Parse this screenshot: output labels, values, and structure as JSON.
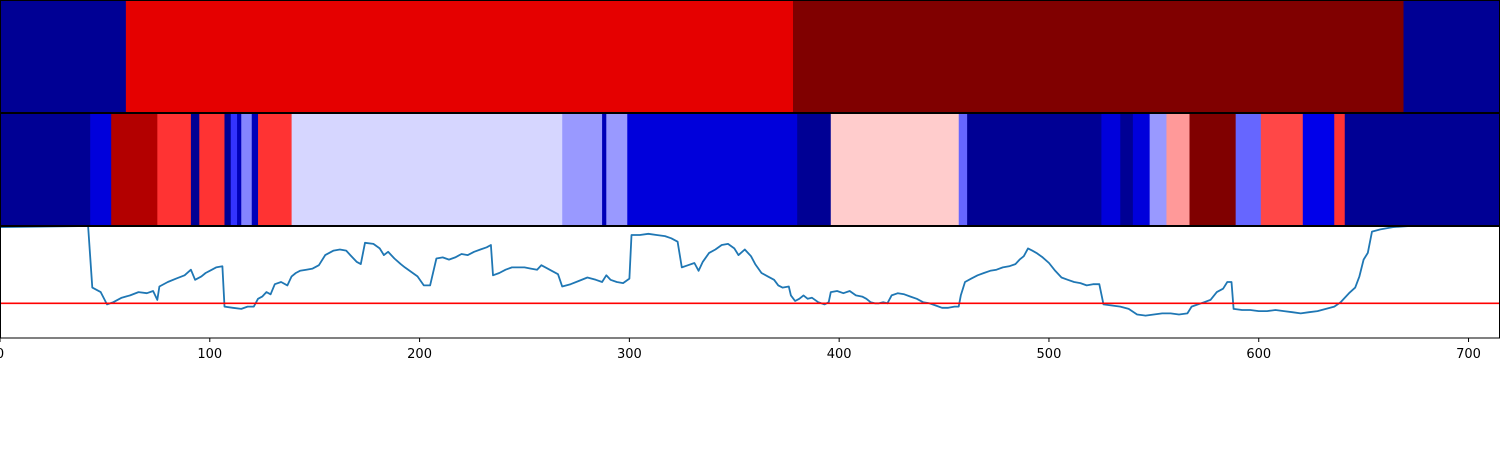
{
  "chart_data": [
    {
      "type": "heatmap",
      "colormap": "seismic",
      "segments": [
        {
          "start": 0,
          "end": 60,
          "value": 0.1
        },
        {
          "start": 60,
          "end": 378,
          "value": 0.8
        },
        {
          "start": 378,
          "end": 669,
          "value": 1.0
        },
        {
          "start": 669,
          "end": 720,
          "value": 0.1
        }
      ]
    },
    {
      "type": "heatmap",
      "colormap": "seismic",
      "segments": [
        {
          "start": 0,
          "end": 43,
          "value": 0.1
        },
        {
          "start": 43,
          "end": 53,
          "value": 0.2
        },
        {
          "start": 53,
          "end": 75,
          "value": 0.9
        },
        {
          "start": 75,
          "end": 91,
          "value": 0.7
        },
        {
          "start": 91,
          "end": 95,
          "value": 0.1
        },
        {
          "start": 95,
          "end": 107,
          "value": 0.7
        },
        {
          "start": 107,
          "end": 110,
          "value": 0.1
        },
        {
          "start": 110,
          "end": 113,
          "value": 0.3
        },
        {
          "start": 113,
          "end": 115,
          "value": 0.15
        },
        {
          "start": 115,
          "end": 120,
          "value": 0.38
        },
        {
          "start": 120,
          "end": 123,
          "value": 0.15
        },
        {
          "start": 123,
          "end": 139,
          "value": 0.7
        },
        {
          "start": 139,
          "end": 268,
          "value": 0.46
        },
        {
          "start": 268,
          "end": 287,
          "value": 0.4
        },
        {
          "start": 287,
          "end": 289,
          "value": 0.15
        },
        {
          "start": 289,
          "end": 299,
          "value": 0.4
        },
        {
          "start": 299,
          "end": 380,
          "value": 0.2
        },
        {
          "start": 380,
          "end": 396,
          "value": 0.1
        },
        {
          "start": 396,
          "end": 457,
          "value": 0.55
        },
        {
          "start": 457,
          "end": 461,
          "value": 0.35
        },
        {
          "start": 461,
          "end": 525,
          "value": 0.1
        },
        {
          "start": 525,
          "end": 534,
          "value": 0.2
        },
        {
          "start": 534,
          "end": 540,
          "value": 0.1
        },
        {
          "start": 540,
          "end": 548,
          "value": 0.2
        },
        {
          "start": 548,
          "end": 556,
          "value": 0.4
        },
        {
          "start": 556,
          "end": 567,
          "value": 0.6
        },
        {
          "start": 567,
          "end": 589,
          "value": 1.0
        },
        {
          "start": 589,
          "end": 601,
          "value": 0.35
        },
        {
          "start": 601,
          "end": 621,
          "value": 0.68
        },
        {
          "start": 621,
          "end": 636,
          "value": 0.22
        },
        {
          "start": 636,
          "end": 641,
          "value": 0.7
        },
        {
          "start": 641,
          "end": 720,
          "value": 0.1
        }
      ]
    },
    {
      "type": "line",
      "xlim": [
        0,
        715
      ],
      "ylim": [
        0,
        1
      ],
      "xticks": [
        0,
        100,
        200,
        300,
        400,
        500,
        600,
        700
      ],
      "xticklabels": [
        "0",
        "100",
        "200",
        "300",
        "400",
        "500",
        "600",
        "700"
      ],
      "series": [
        {
          "color": "#1f77b4",
          "points": [
            [
              0,
              0.99
            ],
            [
              42,
              1.0
            ],
            [
              44,
              0.45
            ],
            [
              48,
              0.41
            ],
            [
              51,
              0.3
            ],
            [
              54,
              0.32
            ],
            [
              58,
              0.36
            ],
            [
              62,
              0.38
            ],
            [
              66,
              0.41
            ],
            [
              70,
              0.4
            ],
            [
              73,
              0.42
            ],
            [
              75,
              0.34
            ],
            [
              76,
              0.46
            ],
            [
              80,
              0.5
            ],
            [
              84,
              0.53
            ],
            [
              88,
              0.56
            ],
            [
              91,
              0.61
            ],
            [
              93,
              0.52
            ],
            [
              96,
              0.55
            ],
            [
              98,
              0.58
            ],
            [
              100,
              0.6
            ],
            [
              103,
              0.63
            ],
            [
              106,
              0.64
            ],
            [
              107,
              0.28
            ],
            [
              111,
              0.27
            ],
            [
              115,
              0.26
            ],
            [
              118,
              0.28
            ],
            [
              121,
              0.28
            ],
            [
              123,
              0.35
            ],
            [
              125,
              0.37
            ],
            [
              127,
              0.41
            ],
            [
              129,
              0.39
            ],
            [
              131,
              0.48
            ],
            [
              134,
              0.5
            ],
            [
              137,
              0.47
            ],
            [
              139,
              0.55
            ],
            [
              141,
              0.58
            ],
            [
              143,
              0.6
            ],
            [
              146,
              0.61
            ],
            [
              149,
              0.62
            ],
            [
              152,
              0.65
            ],
            [
              155,
              0.74
            ],
            [
              159,
              0.78
            ],
            [
              162,
              0.79
            ],
            [
              165,
              0.78
            ],
            [
              167,
              0.74
            ],
            [
              170,
              0.68
            ],
            [
              172,
              0.66
            ],
            [
              174,
              0.85
            ],
            [
              178,
              0.84
            ],
            [
              181,
              0.8
            ],
            [
              183,
              0.74
            ],
            [
              185,
              0.77
            ],
            [
              188,
              0.71
            ],
            [
              191,
              0.66
            ],
            [
              193,
              0.63
            ],
            [
              196,
              0.59
            ],
            [
              199,
              0.55
            ],
            [
              202,
              0.47
            ],
            [
              205,
              0.47
            ],
            [
              208,
              0.71
            ],
            [
              211,
              0.72
            ],
            [
              214,
              0.7
            ],
            [
              217,
              0.72
            ],
            [
              220,
              0.75
            ],
            [
              223,
              0.74
            ],
            [
              226,
              0.77
            ],
            [
              229,
              0.79
            ],
            [
              232,
              0.81
            ],
            [
              234,
              0.83
            ],
            [
              235,
              0.56
            ],
            [
              238,
              0.58
            ],
            [
              241,
              0.61
            ],
            [
              244,
              0.63
            ],
            [
              247,
              0.63
            ],
            [
              250,
              0.63
            ],
            [
              253,
              0.62
            ],
            [
              256,
              0.61
            ],
            [
              258,
              0.65
            ],
            [
              260,
              0.63
            ],
            [
              263,
              0.6
            ],
            [
              266,
              0.57
            ],
            [
              268,
              0.46
            ],
            [
              272,
              0.48
            ],
            [
              276,
              0.51
            ],
            [
              280,
              0.54
            ],
            [
              284,
              0.52
            ],
            [
              287,
              0.5
            ],
            [
              289,
              0.56
            ],
            [
              291,
              0.52
            ],
            [
              294,
              0.5
            ],
            [
              297,
              0.49
            ],
            [
              300,
              0.53
            ],
            [
              301,
              0.92
            ],
            [
              305,
              0.92
            ],
            [
              309,
              0.93
            ],
            [
              313,
              0.92
            ],
            [
              317,
              0.91
            ],
            [
              320,
              0.89
            ],
            [
              323,
              0.86
            ],
            [
              325,
              0.63
            ],
            [
              328,
              0.65
            ],
            [
              331,
              0.67
            ],
            [
              333,
              0.6
            ],
            [
              335,
              0.68
            ],
            [
              338,
              0.76
            ],
            [
              341,
              0.79
            ],
            [
              344,
              0.83
            ],
            [
              347,
              0.84
            ],
            [
              350,
              0.8
            ],
            [
              352,
              0.74
            ],
            [
              355,
              0.79
            ],
            [
              358,
              0.73
            ],
            [
              360,
              0.66
            ],
            [
              363,
              0.58
            ],
            [
              366,
              0.55
            ],
            [
              369,
              0.52
            ],
            [
              371,
              0.47
            ],
            [
              373,
              0.45
            ],
            [
              376,
              0.46
            ],
            [
              377,
              0.38
            ],
            [
              379,
              0.33
            ],
            [
              381,
              0.35
            ],
            [
              383,
              0.38
            ],
            [
              385,
              0.35
            ],
            [
              387,
              0.36
            ],
            [
              390,
              0.32
            ],
            [
              393,
              0.3
            ],
            [
              395,
              0.32
            ],
            [
              396,
              0.41
            ],
            [
              399,
              0.42
            ],
            [
              402,
              0.4
            ],
            [
              405,
              0.42
            ],
            [
              408,
              0.38
            ],
            [
              411,
              0.37
            ],
            [
              413,
              0.35
            ],
            [
              415,
              0.32
            ],
            [
              417,
              0.31
            ],
            [
              419,
              0.31
            ],
            [
              421,
              0.32
            ],
            [
              423,
              0.31
            ],
            [
              425,
              0.38
            ],
            [
              428,
              0.4
            ],
            [
              431,
              0.39
            ],
            [
              434,
              0.37
            ],
            [
              437,
              0.35
            ],
            [
              440,
              0.32
            ],
            [
              443,
              0.31
            ],
            [
              446,
              0.29
            ],
            [
              449,
              0.27
            ],
            [
              452,
              0.27
            ],
            [
              455,
              0.28
            ],
            [
              457,
              0.28
            ],
            [
              458,
              0.38
            ],
            [
              460,
              0.5
            ],
            [
              463,
              0.53
            ],
            [
              466,
              0.56
            ],
            [
              469,
              0.58
            ],
            [
              472,
              0.6
            ],
            [
              475,
              0.61
            ],
            [
              478,
              0.63
            ],
            [
              481,
              0.64
            ],
            [
              484,
              0.66
            ],
            [
              486,
              0.7
            ],
            [
              488,
              0.73
            ],
            [
              490,
              0.8
            ],
            [
              492,
              0.78
            ],
            [
              494,
              0.76
            ],
            [
              497,
              0.72
            ],
            [
              500,
              0.67
            ],
            [
              503,
              0.6
            ],
            [
              506,
              0.54
            ],
            [
              509,
              0.52
            ],
            [
              512,
              0.5
            ],
            [
              515,
              0.49
            ],
            [
              518,
              0.47
            ],
            [
              521,
              0.48
            ],
            [
              524,
              0.48
            ],
            [
              526,
              0.3
            ],
            [
              530,
              0.29
            ],
            [
              534,
              0.28
            ],
            [
              538,
              0.26
            ],
            [
              542,
              0.21
            ],
            [
              546,
              0.2
            ],
            [
              550,
              0.21
            ],
            [
              554,
              0.22
            ],
            [
              558,
              0.22
            ],
            [
              562,
              0.21
            ],
            [
              566,
              0.22
            ],
            [
              568,
              0.28
            ],
            [
              571,
              0.3
            ],
            [
              574,
              0.32
            ],
            [
              577,
              0.34
            ],
            [
              580,
              0.41
            ],
            [
              583,
              0.44
            ],
            [
              585,
              0.5
            ],
            [
              587,
              0.5
            ],
            [
              588,
              0.26
            ],
            [
              592,
              0.25
            ],
            [
              596,
              0.25
            ],
            [
              600,
              0.24
            ],
            [
              604,
              0.24
            ],
            [
              608,
              0.25
            ],
            [
              612,
              0.24
            ],
            [
              616,
              0.23
            ],
            [
              620,
              0.22
            ],
            [
              624,
              0.23
            ],
            [
              628,
              0.24
            ],
            [
              632,
              0.26
            ],
            [
              636,
              0.28
            ],
            [
              639,
              0.32
            ],
            [
              641,
              0.36
            ],
            [
              643,
              0.4
            ],
            [
              646,
              0.45
            ],
            [
              648,
              0.55
            ],
            [
              650,
              0.7
            ],
            [
              652,
              0.76
            ],
            [
              654,
              0.95
            ],
            [
              658,
              0.97
            ],
            [
              664,
              0.99
            ],
            [
              672,
              1.0
            ],
            [
              715,
              1.0
            ]
          ]
        }
      ],
      "reference_line": {
        "y": 0.31,
        "color": "#ff0000"
      }
    }
  ]
}
